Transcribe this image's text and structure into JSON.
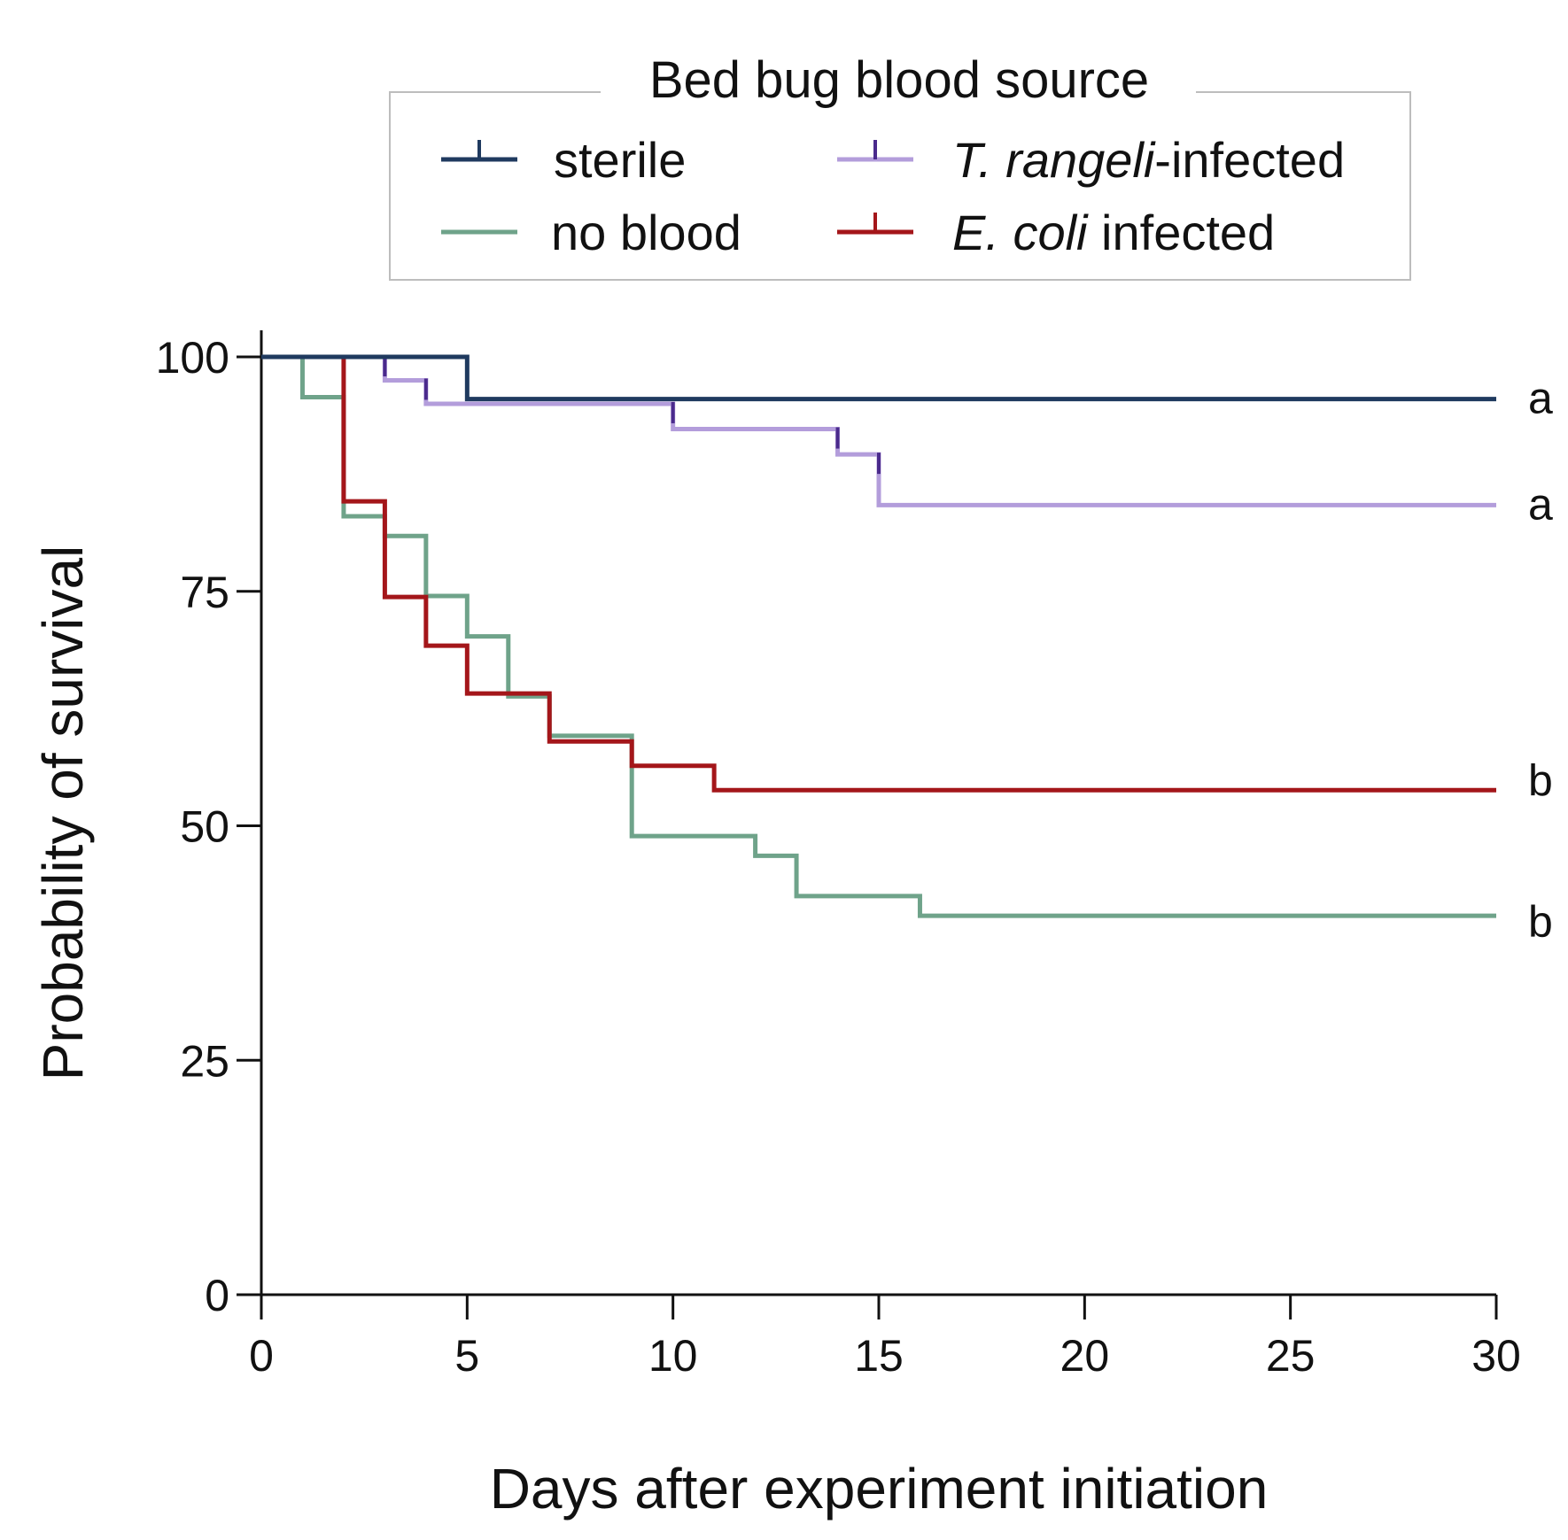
{
  "chart_data": {
    "type": "line",
    "subtype": "kaplan-meier step",
    "legend": {
      "title": "Bed bug blood source",
      "position": "top",
      "columns": 2
    },
    "xlabel": "Days after experiment initiation",
    "ylabel": "Probability of survival",
    "xlim": [
      0,
      30
    ],
    "ylim": [
      0,
      100
    ],
    "xticks": [
      0,
      5,
      10,
      15,
      20,
      25,
      30
    ],
    "yticks": [
      0,
      25,
      50,
      75,
      100
    ],
    "grid": false,
    "series": [
      {
        "name": "sterile",
        "legend_parts": [
          {
            "text": "sterile",
            "italic": false
          }
        ],
        "color": "#1f3a5f",
        "censor_color": "#1f3a5f",
        "steps": [
          [
            0,
            100
          ],
          [
            5,
            95.5
          ],
          [
            30,
            95.5
          ]
        ],
        "censor_times": [
          5
        ],
        "significance": "a"
      },
      {
        "name": "T. rangeli-infected",
        "legend_parts": [
          {
            "text": "T. rangeli",
            "italic": true
          },
          {
            "text": "-infected",
            "italic": false
          }
        ],
        "color": "#b39ddb",
        "censor_color": "#4a2a8c",
        "steps": [
          [
            0,
            100
          ],
          [
            3,
            97.5
          ],
          [
            4,
            95
          ],
          [
            10,
            92.3
          ],
          [
            14,
            89.6
          ],
          [
            15,
            84.2
          ],
          [
            30,
            84.2
          ]
        ],
        "censor_times": [
          3,
          4,
          10,
          14,
          15
        ],
        "significance": "a"
      },
      {
        "name": "no blood",
        "legend_parts": [
          {
            "text": "no blood",
            "italic": false
          }
        ],
        "color": "#6fa38a",
        "censor_color": "#6fa38a",
        "steps": [
          [
            0,
            100
          ],
          [
            1,
            95.7
          ],
          [
            2,
            83
          ],
          [
            3,
            80.9
          ],
          [
            4,
            74.5
          ],
          [
            5,
            70.2
          ],
          [
            6,
            63.8
          ],
          [
            7,
            59.6
          ],
          [
            9,
            48.9
          ],
          [
            12,
            46.8
          ],
          [
            13,
            42.5
          ],
          [
            16,
            40.4
          ],
          [
            30,
            40.4
          ]
        ],
        "censor_times": [],
        "significance": "b"
      },
      {
        "name": "E. coli infected",
        "legend_parts": [
          {
            "text": "E. coli",
            "italic": true
          },
          {
            "text": " infected",
            "italic": false
          }
        ],
        "color": "#a4161a",
        "censor_color": "#a4161a",
        "steps": [
          [
            0,
            100
          ],
          [
            2,
            84.6
          ],
          [
            3,
            74.4
          ],
          [
            4,
            69.2
          ],
          [
            5,
            64.1
          ],
          [
            7,
            59
          ],
          [
            9,
            56.4
          ],
          [
            11,
            53.8
          ],
          [
            30,
            53.8
          ]
        ],
        "censor_times": [
          2
        ],
        "significance": "b"
      }
    ]
  }
}
